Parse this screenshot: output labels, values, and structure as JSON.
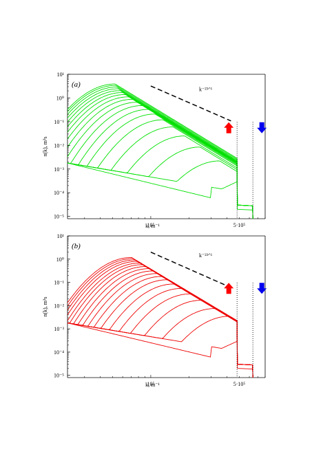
{
  "figure": {
    "panels": [
      {
        "id": "a",
        "label": "(a)",
        "xlabel": "k, m⁻¹",
        "ylabel": "n(k), m³s",
        "xtick_labels": [
          "10⁵",
          "5·10⁵"
        ],
        "ytick_labels": [
          "10¹",
          "10⁰",
          "10⁻¹",
          "10⁻²",
          "10⁻³",
          "10⁻⁴",
          "10⁻⁵"
        ],
        "slope_label": "k⁻²³ᐟ⁶",
        "color": "#00e000",
        "curve_count": 19
      },
      {
        "id": "b",
        "label": "(b)",
        "xlabel": "k, m⁻¹",
        "ylabel": "n(k), m³s",
        "xtick_labels": [
          "10⁵",
          "5·10⁵"
        ],
        "ytick_labels": [
          "10¹",
          "10⁰",
          "10⁻¹",
          "10⁻²",
          "10⁻³",
          "10⁻⁴",
          "10⁻⁵"
        ],
        "slope_label": "k⁻²³ᐟ⁶",
        "color": "#ee0000",
        "curve_count": 19
      }
    ],
    "arrows": {
      "up_color": "#ff0000",
      "down_color": "#0000ee",
      "up_icon": "arrow-up-icon",
      "down_icon": "arrow-down-icon"
    }
  },
  "chart_data": [
    {
      "type": "line",
      "title": "(a)",
      "xlabel": "k, m⁻¹",
      "ylabel": "n(k), m³s",
      "xscale": "log",
      "yscale": "log",
      "xlim": [
        22000,
        800000
      ],
      "ylim": [
        8e-06,
        10
      ],
      "x_ticks_labeled": [
        100000,
        500000
      ],
      "y_ticks": [
        10,
        1,
        0.1,
        0.01,
        0.001,
        0.0001,
        1e-05
      ],
      "reference_slope": {
        "label": "k^-23/6",
        "exponent": -3.8333
      },
      "vertical_markers": [
        480000,
        640000
      ],
      "legend": "none",
      "grid": false,
      "series_description": "family of 19 spectra; peaks move from high k to low k",
      "peaks": [
        {
          "k": 350000,
          "n": 0.0022
        },
        {
          "k": 245000,
          "n": 0.0085
        },
        {
          "k": 185000,
          "n": 0.025
        },
        {
          "k": 150000,
          "n": 0.06
        },
        {
          "k": 125000,
          "n": 0.12
        },
        {
          "k": 108000,
          "n": 0.21
        },
        {
          "k": 96000,
          "n": 0.33
        },
        {
          "k": 86000,
          "n": 0.48
        },
        {
          "k": 78000,
          "n": 0.66
        },
        {
          "k": 72000,
          "n": 0.88
        },
        {
          "k": 67000,
          "n": 1.12
        },
        {
          "k": 63000,
          "n": 1.4
        },
        {
          "k": 60000,
          "n": 1.7
        },
        {
          "k": 57500,
          "n": 2.05
        },
        {
          "k": 55500,
          "n": 2.45
        },
        {
          "k": 54000,
          "n": 2.9
        },
        {
          "k": 53000,
          "n": 3.4
        },
        {
          "k": 52300,
          "n": 3.9
        }
      ],
      "background_level_at_kmin": 0.0018,
      "background_min": {
        "k": 300000,
        "n": 9e-05
      }
    },
    {
      "type": "line",
      "title": "(b)",
      "xlabel": "k, m⁻¹",
      "ylabel": "n(k), m³s",
      "xscale": "log",
      "yscale": "log",
      "xlim": [
        22000,
        800000
      ],
      "ylim": [
        8e-06,
        10
      ],
      "x_ticks_labeled": [
        100000,
        500000
      ],
      "y_ticks": [
        10,
        1,
        0.1,
        0.01,
        0.001,
        0.0001,
        1e-05
      ],
      "reference_slope": {
        "label": "k^-23/6",
        "exponent": -3.8333
      },
      "vertical_markers": [
        480000,
        640000
      ],
      "legend": "none",
      "grid": false,
      "series_description": "family of 19 spectra; peaks move from high k to low k",
      "peaks": [
        {
          "k": 420000,
          "n": 0.0035
        },
        {
          "k": 320000,
          "n": 0.0075
        },
        {
          "k": 250000,
          "n": 0.017
        },
        {
          "k": 205000,
          "n": 0.032
        },
        {
          "k": 175000,
          "n": 0.055
        },
        {
          "k": 152000,
          "n": 0.085
        },
        {
          "k": 135000,
          "n": 0.13
        },
        {
          "k": 122000,
          "n": 0.18
        },
        {
          "k": 112000,
          "n": 0.24
        },
        {
          "k": 104000,
          "n": 0.31
        },
        {
          "k": 97000,
          "n": 0.39
        },
        {
          "k": 91000,
          "n": 0.48
        },
        {
          "k": 86000,
          "n": 0.58
        },
        {
          "k": 82000,
          "n": 0.68
        },
        {
          "k": 78000,
          "n": 0.8
        },
        {
          "k": 75000,
          "n": 0.92
        },
        {
          "k": 72500,
          "n": 1.05
        },
        {
          "k": 70500,
          "n": 1.18
        }
      ],
      "background_level_at_kmin": 0.0018,
      "background_min": {
        "k": 300000,
        "n": 9e-05
      }
    }
  ]
}
